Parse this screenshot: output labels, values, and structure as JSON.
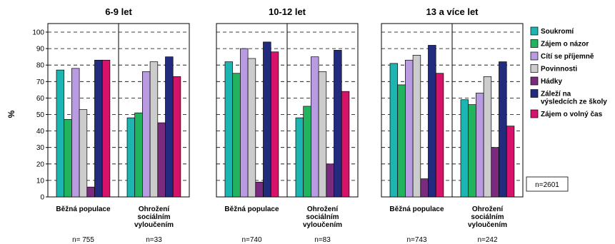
{
  "chart_data": {
    "type": "bar",
    "ylabel": "%",
    "ylim": [
      0,
      100
    ],
    "yticks": [
      0,
      10,
      20,
      30,
      40,
      50,
      60,
      70,
      80,
      90,
      100
    ],
    "grid": true,
    "legend_position": "right",
    "series": [
      {
        "name": "Soukromí",
        "color": "#1cb5b1"
      },
      {
        "name": "Zájem o názor",
        "color": "#22b35e"
      },
      {
        "name": "Cítí se příjemně",
        "color": "#b89be0"
      },
      {
        "name": "Povinnosti",
        "color": "#cccccc"
      },
      {
        "name": "Hádky",
        "color": "#7b2b7e"
      },
      {
        "name": "Záleží na výsledcích ze školy",
        "color": "#232b7e"
      },
      {
        "name": "Zájem o volný čas",
        "color": "#d6126b"
      }
    ],
    "panels": [
      {
        "title": "6-9 let",
        "groups": [
          {
            "label": [
              "Běžná populace"
            ],
            "n": "n= 755",
            "values": [
              77,
              47,
              78,
              53,
              6,
              83,
              83
            ]
          },
          {
            "label": [
              "Ohrožení",
              "sociálním",
              "vyloučením"
            ],
            "n": "n=33",
            "values": [
              48,
              51,
              76,
              82,
              45,
              85,
              73
            ]
          }
        ]
      },
      {
        "title": "10-12 let",
        "groups": [
          {
            "label": [
              "Běžná populace"
            ],
            "n": "n=740",
            "values": [
              82,
              75,
              90,
              84,
              9,
              94,
              88
            ]
          },
          {
            "label": [
              "Ohrožení",
              "sociálním",
              "vyloučením"
            ],
            "n": "n=83",
            "values": [
              48,
              55,
              85,
              76,
              20,
              89,
              64
            ]
          }
        ]
      },
      {
        "title": "13 a více let",
        "groups": [
          {
            "label": [
              "Běžná populace"
            ],
            "n": "n=743",
            "values": [
              81,
              68,
              83,
              86,
              11,
              92,
              75
            ]
          },
          {
            "label": [
              "Ohrožení",
              "sociálním",
              "vyloučením"
            ],
            "n": "n=242",
            "values": [
              59,
              56,
              63,
              73,
              30,
              82,
              43
            ]
          }
        ]
      }
    ],
    "total_n": "n=2601"
  }
}
